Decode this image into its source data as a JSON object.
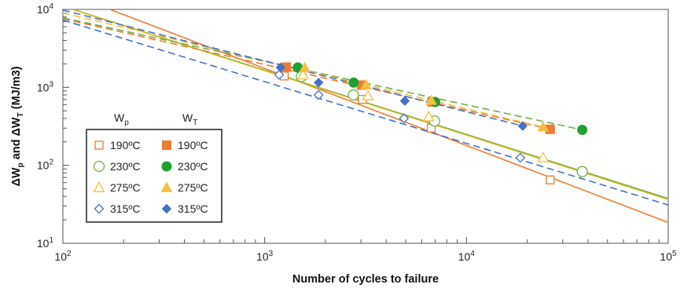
{
  "chart_data": {
    "type": "scatter",
    "title": "",
    "xlabel": "Number of cycles to failure",
    "ylabel": "ΔWp and ΔWT (MJ/m3)",
    "xscale": "log",
    "yscale": "log",
    "xlim": [
      100,
      100000
    ],
    "ylim": [
      10,
      10000
    ],
    "x_ticks": [
      {
        "value": 100,
        "base": "10",
        "exp": "2"
      },
      {
        "value": 1000,
        "base": "10",
        "exp": "3"
      },
      {
        "value": 10000,
        "base": "10",
        "exp": "4"
      },
      {
        "value": 100000,
        "base": "10",
        "exp": "5"
      }
    ],
    "y_ticks": [
      {
        "value": 10,
        "base": "10",
        "exp": "1"
      },
      {
        "value": 100,
        "base": "10",
        "exp": "2"
      },
      {
        "value": 1000,
        "base": "10",
        "exp": "3"
      },
      {
        "value": 10000,
        "base": "10",
        "exp": "4"
      }
    ],
    "grid": false,
    "legend": {
      "placement": "lower-left",
      "header_wp": {
        "main": "W",
        "sub": "p"
      },
      "header_wt": {
        "main": "W",
        "sub": "T"
      }
    },
    "series": [
      {
        "name": "190ºC",
        "group": "Wp",
        "color": "#ED7D31",
        "marker": "square",
        "filled": false,
        "x": [
          1250,
          3050,
          6700,
          26000
        ],
        "y": [
          1400,
          700,
          300,
          65
        ]
      },
      {
        "name": "230ºC",
        "group": "Wp",
        "color": "#70AD47",
        "marker": "circle",
        "filled": false,
        "x": [
          1520,
          2750,
          6950,
          37500
        ],
        "y": [
          1380,
          800,
          370,
          83
        ]
      },
      {
        "name": "275ºC",
        "group": "Wp",
        "color": "#F4C042",
        "marker": "triangle",
        "filled": false,
        "x": [
          1550,
          3250,
          6500,
          24000
        ],
        "y": [
          1450,
          780,
          420,
          125
        ]
      },
      {
        "name": "315ºC",
        "group": "Wp",
        "color": "#4472C4",
        "marker": "diamond",
        "filled": false,
        "x": [
          1180,
          1850,
          4900,
          18500
        ],
        "y": [
          1450,
          800,
          400,
          125
        ]
      },
      {
        "name": "190ºC",
        "group": "WT",
        "color": "#ED7D31",
        "marker": "square",
        "filled": true,
        "x": [
          1280,
          3020,
          6750,
          26000
        ],
        "y": [
          1820,
          1070,
          650,
          290
        ]
      },
      {
        "name": "230ºC",
        "group": "WT",
        "color": "#1FA12F",
        "marker": "circle",
        "filled": true,
        "x": [
          1460,
          2760,
          7000,
          37500
        ],
        "y": [
          1800,
          1150,
          650,
          285
        ]
      },
      {
        "name": "275ºC",
        "group": "WT",
        "color": "#F4C042",
        "marker": "triangle",
        "filled": true,
        "x": [
          1580,
          3180,
          6700,
          24000
        ],
        "y": [
          1780,
          1080,
          680,
          310
        ]
      },
      {
        "name": "315ºC",
        "group": "WT",
        "color": "#4472C4",
        "marker": "diamond",
        "filled": true,
        "x": [
          1200,
          1850,
          4950,
          19000
        ],
        "y": [
          1800,
          1150,
          670,
          320
        ]
      }
    ],
    "trendlines": [
      {
        "color": "#ED7D31",
        "dashed": false,
        "x": [
          100,
          100000
        ],
        "y": [
          17000,
          18.5
        ]
      },
      {
        "color": "#70AD47",
        "dashed": false,
        "x": [
          100,
          100000
        ],
        "y": [
          11000,
          37.5
        ]
      },
      {
        "color": "#C9B81E",
        "dashed": false,
        "x": [
          100,
          100000
        ],
        "y": [
          11000,
          36.5
        ]
      },
      {
        "color": "#4472C4",
        "dashed": true,
        "x": [
          100,
          100000
        ],
        "y": [
          7300,
          31
        ]
      },
      {
        "color": "#ED7D31",
        "dashed": true,
        "x": [
          100,
          26000
        ],
        "y": [
          7600,
          290
        ]
      },
      {
        "color": "#70AD47",
        "dashed": true,
        "x": [
          100,
          37500
        ],
        "y": [
          7800,
          285
        ]
      },
      {
        "color": "#F4C042",
        "dashed": true,
        "x": [
          100,
          24000
        ],
        "y": [
          9000,
          310
        ]
      },
      {
        "color": "#4472C4",
        "dashed": true,
        "x": [
          100,
          19000
        ],
        "y": [
          9800,
          320
        ]
      }
    ]
  }
}
